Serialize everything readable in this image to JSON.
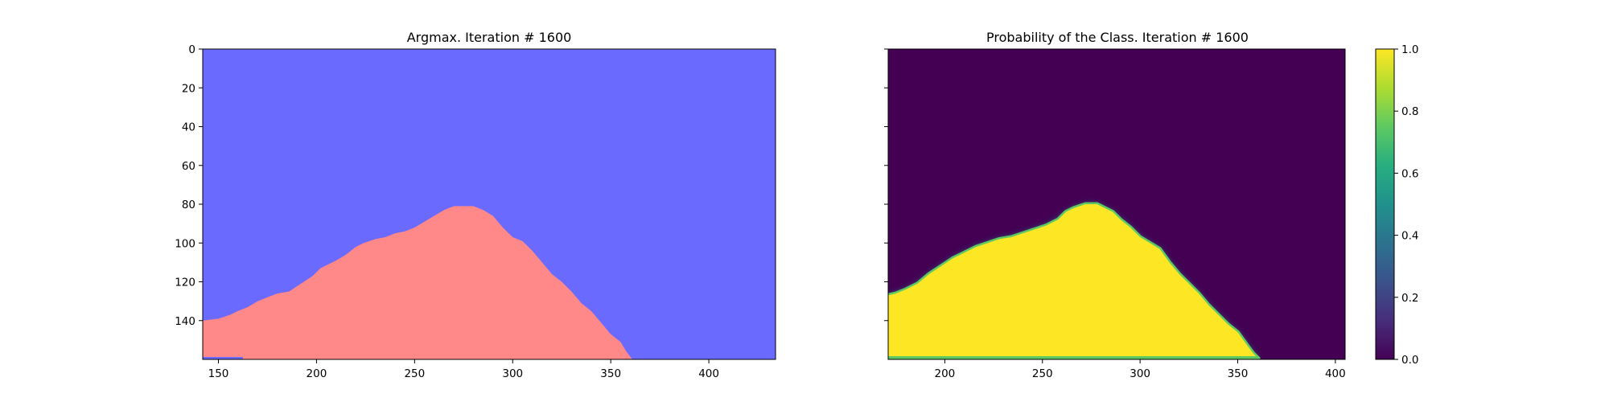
{
  "chart_data": [
    {
      "type": "heatmap",
      "variant": "argmax-class-map",
      "title": "Argmax. Iteration # 1600",
      "x_ticks": [
        150,
        200,
        250,
        300,
        350,
        400
      ],
      "y_ticks": [
        0,
        20,
        40,
        60,
        80,
        100,
        120,
        140
      ],
      "xlim": [
        142,
        434
      ],
      "ylim": [
        160,
        0
      ],
      "y_axis_inverted": true,
      "colors": {
        "background_class": "#6a6aff",
        "object_class": "#ff8888"
      },
      "boundary": [
        [
          142,
          140
        ],
        [
          150,
          139
        ],
        [
          156,
          137
        ],
        [
          160,
          135
        ],
        [
          165,
          133
        ],
        [
          170,
          130
        ],
        [
          175,
          128
        ],
        [
          180,
          126
        ],
        [
          186,
          125
        ],
        [
          192,
          121
        ],
        [
          198,
          117
        ],
        [
          202,
          113
        ],
        [
          210,
          109
        ],
        [
          215,
          106
        ],
        [
          220,
          102
        ],
        [
          224,
          100
        ],
        [
          230,
          98
        ],
        [
          235,
          97
        ],
        [
          240,
          95
        ],
        [
          245,
          94
        ],
        [
          250,
          92
        ],
        [
          255,
          89
        ],
        [
          260,
          86
        ],
        [
          265,
          83
        ],
        [
          270,
          81
        ],
        [
          275,
          81
        ],
        [
          280,
          81
        ],
        [
          285,
          83
        ],
        [
          290,
          86
        ],
        [
          295,
          92
        ],
        [
          300,
          97
        ],
        [
          305,
          99
        ],
        [
          310,
          104
        ],
        [
          315,
          110
        ],
        [
          320,
          116
        ],
        [
          325,
          120
        ],
        [
          330,
          125
        ],
        [
          335,
          131
        ],
        [
          340,
          135
        ],
        [
          345,
          141
        ],
        [
          350,
          147
        ],
        [
          355,
          151
        ],
        [
          358,
          156
        ],
        [
          361,
          160
        ]
      ]
    },
    {
      "type": "heatmap",
      "variant": "probability-map",
      "title": "Probability of the Class. Iteration # 1600",
      "x_ticks": [
        200,
        250,
        300,
        350,
        400
      ],
      "y_ticks": [
        0,
        20,
        40,
        60,
        80,
        100,
        120,
        140
      ],
      "y_tick_labels_shown": false,
      "xlim": [
        171,
        405
      ],
      "ylim": [
        160,
        0
      ],
      "y_axis_inverted": true,
      "colormap": "viridis",
      "value_range": [
        0.0,
        1.0
      ],
      "boundary": [
        [
          171,
          127
        ],
        [
          175,
          126
        ],
        [
          180,
          124
        ],
        [
          186,
          121
        ],
        [
          192,
          116
        ],
        [
          198,
          112
        ],
        [
          204,
          108
        ],
        [
          210,
          105
        ],
        [
          216,
          102
        ],
        [
          222,
          100
        ],
        [
          228,
          98
        ],
        [
          234,
          97
        ],
        [
          240,
          95
        ],
        [
          246,
          93
        ],
        [
          252,
          91
        ],
        [
          258,
          88
        ],
        [
          262,
          84
        ],
        [
          266,
          82
        ],
        [
          272,
          80
        ],
        [
          278,
          80
        ],
        [
          282,
          82
        ],
        [
          286,
          84
        ],
        [
          290,
          88
        ],
        [
          295,
          92
        ],
        [
          300,
          97
        ],
        [
          305,
          100
        ],
        [
          310,
          103
        ],
        [
          315,
          110
        ],
        [
          320,
          116
        ],
        [
          325,
          121
        ],
        [
          330,
          126
        ],
        [
          335,
          132
        ],
        [
          340,
          137
        ],
        [
          345,
          142
        ],
        [
          350,
          146
        ],
        [
          355,
          153
        ],
        [
          358,
          157
        ],
        [
          361,
          160
        ]
      ],
      "colorbar": {
        "ticks": [
          "0.0",
          "0.2",
          "0.4",
          "0.6",
          "0.8",
          "1.0"
        ],
        "range": [
          0.0,
          1.0
        ]
      }
    }
  ]
}
